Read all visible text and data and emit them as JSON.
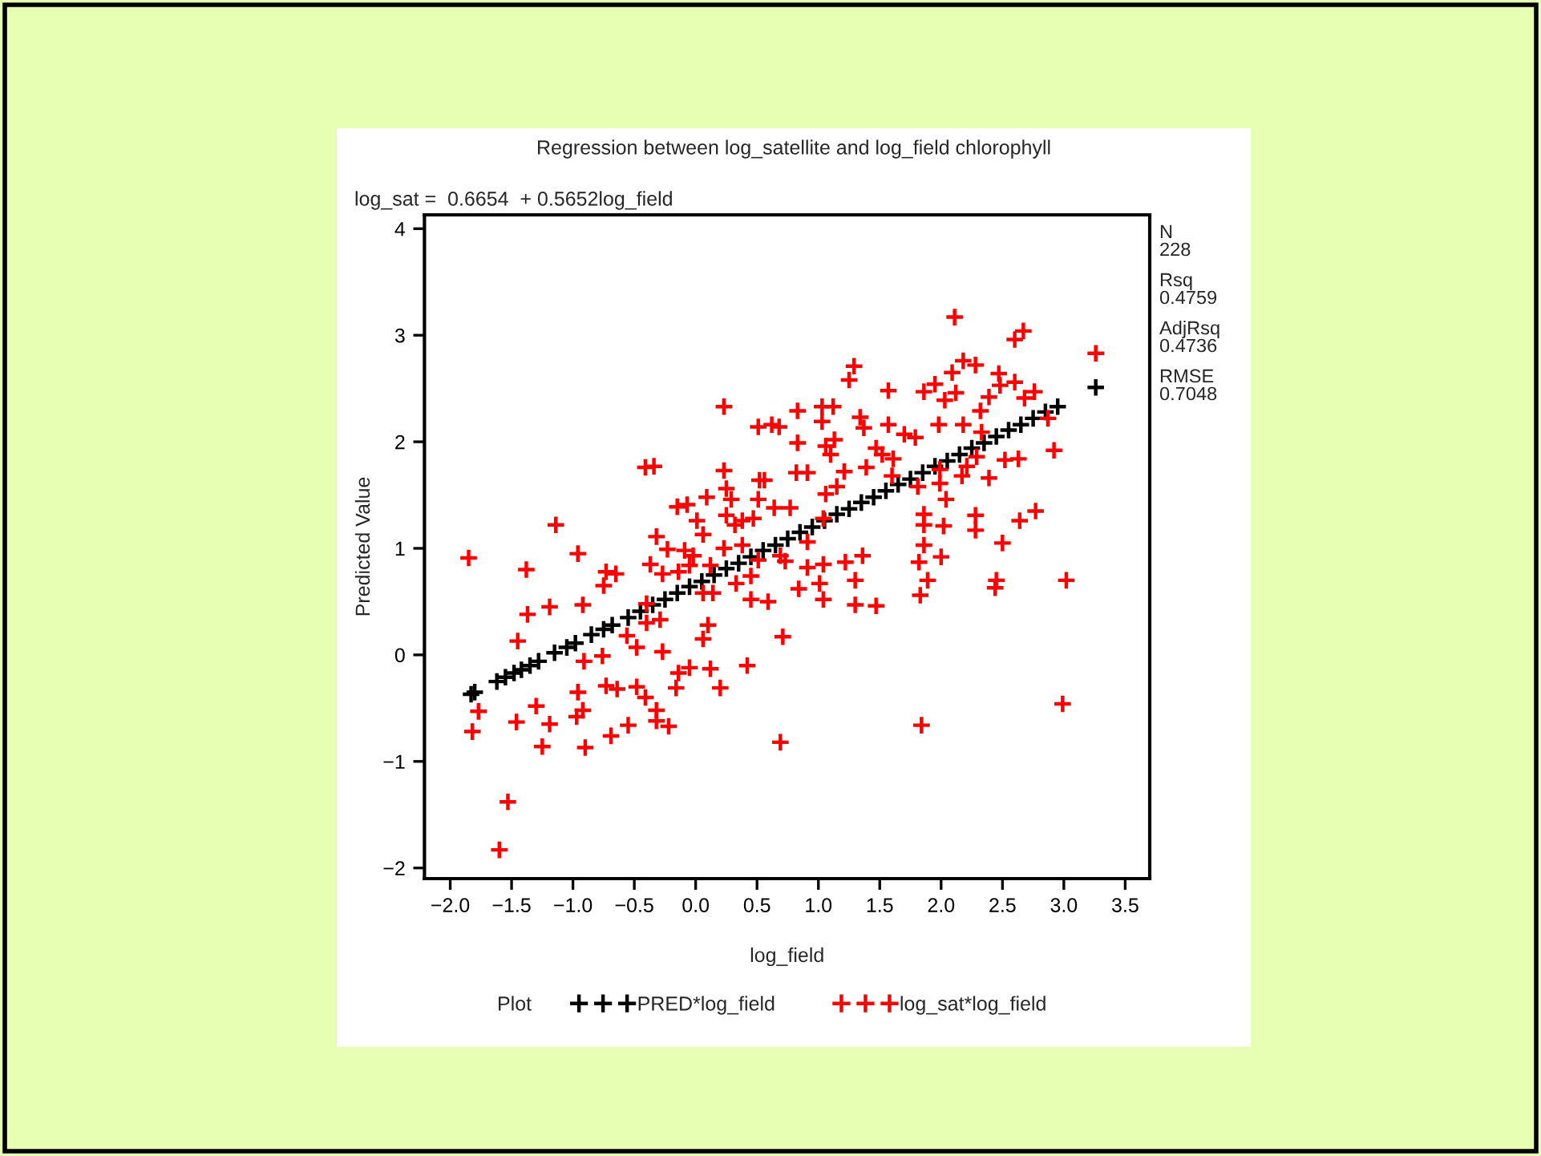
{
  "chart_data": {
    "type": "scatter",
    "title": "Regression between log_satellite and log_field chlorophyll",
    "xlabel": "log_field",
    "ylabel": "Predicted Value",
    "legend_title": "Plot",
    "annotations": [
      "log_sat =  0.6654  + 0.5652log_field",
      "N\n228",
      "Rsq\n0.4759",
      "AdjRsq\n0.4736",
      "RMSE\n0.7048"
    ],
    "xlim": [
      -2.21,
      3.7
    ],
    "ylim": [
      -2.1,
      4.13
    ],
    "xticks": [
      {
        "value": -2,
        "label": "−2.0"
      },
      {
        "value": -1.5,
        "label": "−1.5"
      },
      {
        "value": -1,
        "label": "−1.0"
      },
      {
        "value": -0.5,
        "label": "−0.5"
      },
      {
        "value": 0,
        "label": "0.0"
      },
      0.5,
      {
        "value": 1,
        "label": "1.0"
      },
      1.5,
      {
        "value": 2,
        "label": "2.0"
      },
      2.5,
      {
        "value": 3,
        "label": "3.0"
      },
      3.5
    ],
    "yticks": [
      {
        "value": -2,
        "label": "−2"
      },
      {
        "value": -1,
        "label": "−1"
      },
      0,
      1,
      2,
      3,
      4
    ],
    "grid": false,
    "legend": "bottom",
    "marker": "cross",
    "series": [
      {
        "name": "PRED*log_field",
        "color": "#000000",
        "x": [
          -1.83,
          -1.8,
          -1.62,
          -1.55,
          -1.48,
          -1.42,
          -1.35,
          -1.28,
          -1.15,
          -1.05,
          -0.98,
          -0.85,
          -0.75,
          -0.68,
          -0.55,
          -0.45,
          -0.35,
          -0.25,
          -0.15,
          -0.05,
          0.05,
          0.15,
          0.25,
          0.35,
          0.45,
          0.55,
          0.65,
          0.75,
          0.85,
          0.95,
          1.05,
          1.15,
          1.25,
          1.35,
          1.45,
          1.55,
          1.65,
          1.75,
          1.85,
          1.95,
          2.05,
          2.15,
          2.25,
          2.35,
          2.45,
          2.55,
          2.65,
          2.75,
          2.85,
          2.95,
          3.26
        ],
        "values": [
          -0.37,
          -0.35,
          -0.25,
          -0.21,
          -0.17,
          -0.14,
          -0.1,
          -0.06,
          0.02,
          0.07,
          0.11,
          0.19,
          0.24,
          0.28,
          0.35,
          0.41,
          0.47,
          0.52,
          0.58,
          0.64,
          0.69,
          0.75,
          0.81,
          0.86,
          0.92,
          0.98,
          1.03,
          1.09,
          1.15,
          1.2,
          1.26,
          1.32,
          1.37,
          1.43,
          1.48,
          1.54,
          1.6,
          1.65,
          1.71,
          1.77,
          1.82,
          1.88,
          1.94,
          1.99,
          2.05,
          2.11,
          2.16,
          2.22,
          2.28,
          2.33,
          2.51
        ]
      },
      {
        "name": "log_sat*log_field",
        "color": "#ff0000",
        "x": [
          -1.85,
          -1.82,
          -1.77,
          -1.53,
          -1.6,
          -1.46,
          -1.45,
          -1.37,
          -1.38,
          -1.3,
          -1.25,
          -1.19,
          -1.19,
          -1.14,
          -0.96,
          -0.96,
          -0.92,
          -0.91,
          -0.92,
          -0.97,
          -0.9,
          -0.76,
          -0.75,
          -0.73,
          -0.65,
          -0.73,
          -0.64,
          -0.69,
          -0.55,
          -0.56,
          -0.48,
          -0.48,
          -0.41,
          -0.34,
          -0.32,
          -0.37,
          -0.4,
          -0.4,
          -0.29,
          -0.27,
          -0.41,
          -0.32,
          -0.32,
          -0.22,
          -0.27,
          -0.16,
          -0.14,
          -0.05,
          0.06,
          0.1,
          0.12,
          0.2,
          0.23,
          0.23,
          -0.15,
          -0.07,
          0.09,
          0.01,
          0.06,
          -0.09,
          -0.02,
          -0.23,
          -0.14,
          -0.05,
          0.25,
          0.29,
          0.25,
          0.32,
          0.38,
          0.47,
          0.38,
          0.23,
          0.12,
          0.14,
          0.06,
          0.33,
          0.45,
          0.45,
          0.42,
          0.51,
          0.51,
          0.52,
          0.51,
          0.62,
          0.68,
          0.83,
          0.83,
          1.03,
          1.12,
          1.03,
          1.06,
          1.13,
          1.1,
          1.29,
          1.25,
          1.34,
          1.37,
          1.57,
          1.57,
          1.47,
          1.52,
          1.61,
          1.39,
          1.6,
          1.7,
          1.79,
          1.86,
          1.95,
          2.03,
          2.11,
          2.09,
          2.12,
          1.98,
          2.18,
          2.18,
          2.28,
          2.6,
          2.67,
          2.47,
          2.48,
          2.6,
          2.76,
          2.68,
          2.39,
          2.32,
          2.33,
          3.26,
          2.87,
          2.92,
          2.52,
          2.63,
          2.39,
          2.29,
          2.21,
          2.17,
          1.81,
          1.99,
          2.04,
          1.86,
          1.86,
          2.02,
          1.86,
          1.82,
          1.89,
          1.83,
          2.0,
          2.28,
          2.28,
          2.5,
          2.64,
          2.77,
          2.45,
          2.44,
          3.02,
          2.99,
          1.84,
          0.69,
          0.71,
          0.59,
          0.84,
          1.01,
          1.04,
          1.3,
          1.47,
          1.3,
          1.22,
          1.36,
          1.04,
          0.91,
          0.73,
          0.69,
          0.91,
          1.06,
          1.15,
          1.21,
          0.91,
          0.82,
          0.56,
          0.64,
          0.77,
          1.99,
          1.04
        ],
        "values": [
          0.91,
          -0.72,
          -0.53,
          -1.38,
          -1.83,
          -0.63,
          0.13,
          0.38,
          0.8,
          -0.48,
          -0.86,
          0.45,
          -0.65,
          1.22,
          0.95,
          -0.35,
          0.47,
          -0.06,
          -0.52,
          -0.58,
          -0.87,
          -0.01,
          0.65,
          0.78,
          0.76,
          -0.29,
          -0.32,
          -0.76,
          -0.66,
          0.18,
          0.07,
          -0.3,
          1.76,
          1.77,
          1.11,
          0.85,
          0.48,
          0.3,
          0.33,
          0.76,
          -0.4,
          -0.52,
          -0.62,
          -0.67,
          0.03,
          -0.31,
          -0.17,
          -0.12,
          0.15,
          0.28,
          -0.13,
          -0.31,
          2.33,
          1.73,
          1.39,
          1.41,
          1.48,
          1.26,
          1.13,
          0.98,
          0.93,
          0.99,
          0.78,
          0.84,
          1.56,
          1.46,
          1.31,
          1.22,
          1.26,
          1.28,
          1.03,
          1.0,
          0.84,
          0.58,
          0.58,
          0.67,
          0.74,
          0.52,
          -0.1,
          2.14,
          1.46,
          1.64,
          0.89,
          2.16,
          2.14,
          2.29,
          1.99,
          2.33,
          2.33,
          2.19,
          1.96,
          2.02,
          1.88,
          2.71,
          2.58,
          2.23,
          2.13,
          2.48,
          2.16,
          1.94,
          1.88,
          1.84,
          1.76,
          1.68,
          2.07,
          2.04,
          2.47,
          2.54,
          2.39,
          3.17,
          2.65,
          2.46,
          2.16,
          2.16,
          2.76,
          2.72,
          2.96,
          3.04,
          2.64,
          2.53,
          2.56,
          2.47,
          2.41,
          2.42,
          2.29,
          2.09,
          2.83,
          2.22,
          1.92,
          1.83,
          1.84,
          1.66,
          1.86,
          1.77,
          1.68,
          1.58,
          1.61,
          1.46,
          1.32,
          1.22,
          1.21,
          1.03,
          0.87,
          0.7,
          0.56,
          0.92,
          1.31,
          1.17,
          1.05,
          1.26,
          1.35,
          0.7,
          0.63,
          0.7,
          -0.46,
          -0.66,
          -0.82,
          0.17,
          0.5,
          0.62,
          0.67,
          0.52,
          0.47,
          0.46,
          0.7,
          0.87,
          0.93,
          0.85,
          0.82,
          0.88,
          0.93,
          1.06,
          1.51,
          1.58,
          1.72,
          1.71,
          1.71,
          1.64,
          1.38,
          1.38,
          1.74,
          1.28
        ]
      }
    ]
  }
}
